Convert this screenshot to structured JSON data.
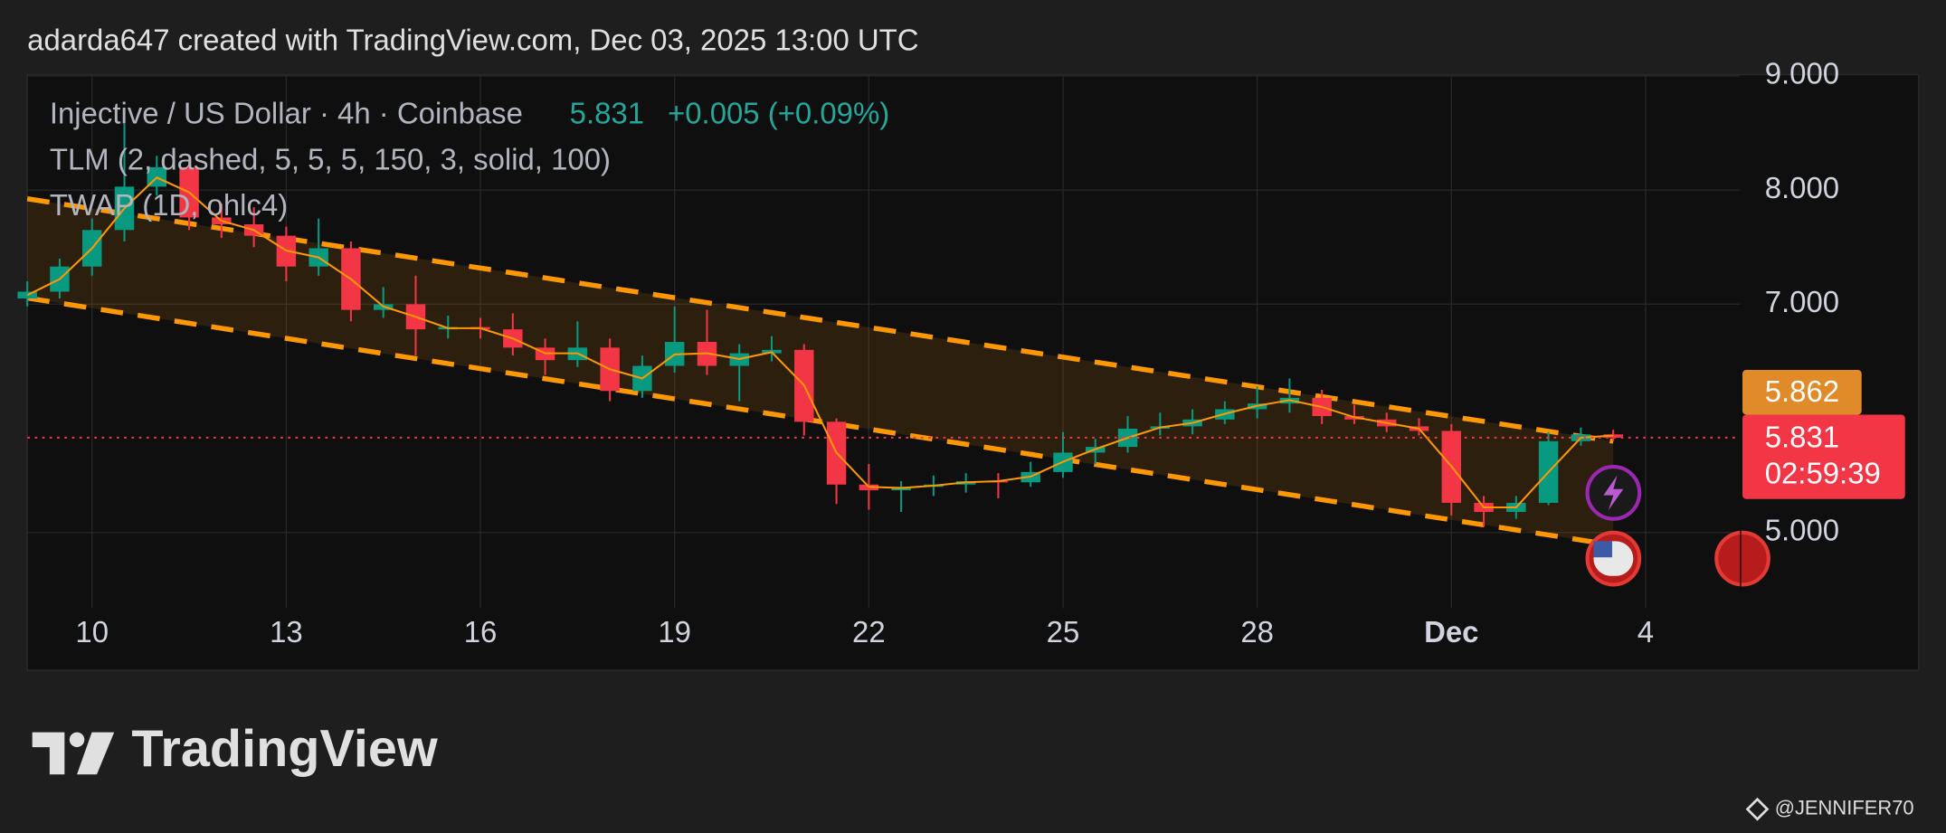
{
  "header": "adarda647 created with TradingView.com, Dec 03, 2025 13:00 UTC",
  "chart_data": {
    "type": "candlestick",
    "title": "Injective / US Dollar · 4h · Coinbase",
    "last_price": 5.831,
    "change": "+0.005 (+0.09%)",
    "indicators": [
      "TLM (2, dashed, 5, 5, 5, 150, 3, solid, 100)",
      "TWAP (1D, ohlc4)"
    ],
    "marker_price": 5.862,
    "countdown": "02:59:39",
    "up_color": "#089981",
    "down_color": "#f23645",
    "twap_color": "#ff9800",
    "channel_color": "#ff9800",
    "x": [
      "2025-11-09T00:00Z",
      "2025-11-09T12:00Z",
      "2025-11-10T00:00Z",
      "2025-11-10T12:00Z",
      "2025-11-11T00:00Z",
      "2025-11-11T12:00Z",
      "2025-11-12T00:00Z",
      "2025-11-12T12:00Z",
      "2025-11-13T00:00Z",
      "2025-11-13T12:00Z",
      "2025-11-14T00:00Z",
      "2025-11-14T12:00Z",
      "2025-11-15T00:00Z",
      "2025-11-15T12:00Z",
      "2025-11-16T00:00Z",
      "2025-11-16T12:00Z",
      "2025-11-17T00:00Z",
      "2025-11-17T12:00Z",
      "2025-11-18T00:00Z",
      "2025-11-18T12:00Z",
      "2025-11-19T00:00Z",
      "2025-11-19T12:00Z",
      "2025-11-20T00:00Z",
      "2025-11-20T12:00Z",
      "2025-11-21T00:00Z",
      "2025-11-21T12:00Z",
      "2025-11-22T00:00Z",
      "2025-11-22T12:00Z",
      "2025-11-23T00:00Z",
      "2025-11-23T12:00Z",
      "2025-11-24T00:00Z",
      "2025-11-24T12:00Z",
      "2025-11-25T00:00Z",
      "2025-11-25T12:00Z",
      "2025-11-26T00:00Z",
      "2025-11-26T12:00Z",
      "2025-11-27T00:00Z",
      "2025-11-27T12:00Z",
      "2025-11-28T00:00Z",
      "2025-11-28T12:00Z",
      "2025-11-29T00:00Z",
      "2025-11-29T12:00Z",
      "2025-11-30T00:00Z",
      "2025-11-30T12:00Z",
      "2025-12-01T00:00Z",
      "2025-12-01T12:00Z",
      "2025-12-02T00:00Z",
      "2025-12-02T12:00Z",
      "2025-12-03T00:00Z",
      "2025-12-03T12:00Z"
    ],
    "open": [
      7.05,
      7.11,
      7.33,
      7.65,
      8.03,
      8.2,
      7.76,
      7.7,
      7.6,
      7.33,
      7.49,
      6.95,
      7.0,
      6.78,
      6.8,
      6.78,
      6.62,
      6.51,
      6.62,
      6.24,
      6.46,
      6.67,
      6.46,
      6.57,
      6.6,
      5.97,
      5.42,
      5.37,
      5.4,
      5.42,
      5.45,
      5.44,
      5.53,
      5.7,
      5.75,
      5.91,
      5.93,
      5.99,
      6.08,
      6.13,
      6.18,
      6.02,
      5.99,
      5.93,
      5.89,
      5.26,
      5.18,
      5.26,
      5.8,
      5.86
    ],
    "high": [
      7.2,
      7.4,
      7.75,
      8.58,
      8.3,
      8.25,
      7.88,
      7.85,
      7.68,
      7.75,
      7.55,
      7.15,
      7.25,
      6.9,
      6.88,
      6.92,
      6.7,
      6.85,
      6.7,
      6.55,
      6.98,
      6.95,
      6.65,
      6.72,
      6.65,
      6.0,
      5.6,
      5.45,
      5.5,
      5.52,
      5.52,
      5.62,
      5.88,
      5.82,
      6.02,
      6.05,
      6.08,
      6.15,
      6.28,
      6.35,
      6.25,
      6.12,
      6.05,
      6.0,
      5.95,
      5.32,
      5.32,
      5.88,
      5.92,
      5.9
    ],
    "low": [
      6.98,
      7.05,
      7.25,
      7.55,
      7.95,
      7.65,
      7.58,
      7.5,
      7.2,
      7.25,
      6.85,
      6.88,
      6.55,
      6.7,
      6.7,
      6.55,
      6.38,
      6.45,
      6.15,
      6.18,
      6.4,
      6.38,
      6.15,
      6.5,
      5.85,
      5.25,
      5.2,
      5.18,
      5.32,
      5.35,
      5.3,
      5.4,
      5.48,
      5.6,
      5.7,
      5.85,
      5.86,
      5.95,
      6.0,
      6.05,
      5.95,
      5.95,
      5.88,
      5.85,
      5.15,
      5.05,
      5.12,
      5.24,
      5.76,
      5.8
    ],
    "close": [
      7.11,
      7.33,
      7.65,
      8.03,
      8.2,
      7.76,
      7.7,
      7.6,
      7.33,
      7.49,
      6.95,
      7.0,
      6.78,
      6.8,
      6.78,
      6.62,
      6.51,
      6.62,
      6.24,
      6.46,
      6.67,
      6.46,
      6.57,
      6.6,
      5.97,
      5.42,
      5.37,
      5.4,
      5.42,
      5.45,
      5.44,
      5.53,
      5.7,
      5.75,
      5.91,
      5.93,
      5.99,
      6.08,
      6.13,
      6.18,
      6.02,
      5.99,
      5.93,
      5.89,
      5.26,
      5.18,
      5.26,
      5.8,
      5.86,
      5.831
    ],
    "twap": [
      7.08,
      7.22,
      7.49,
      7.84,
      8.11,
      7.98,
      7.73,
      7.65,
      7.47,
      7.41,
      7.22,
      6.98,
      6.89,
      6.79,
      6.79,
      6.7,
      6.57,
      6.57,
      6.43,
      6.35,
      6.56,
      6.57,
      6.52,
      6.58,
      6.29,
      5.7,
      5.4,
      5.39,
      5.41,
      5.44,
      5.45,
      5.49,
      5.62,
      5.73,
      5.83,
      5.92,
      5.96,
      6.04,
      6.11,
      6.16,
      6.1,
      6.01,
      5.96,
      5.91,
      5.58,
      5.22,
      5.22,
      5.53,
      5.83,
      5.85
    ],
    "channel": {
      "x": [
        "2025-11-09T00:00Z",
        "2025-12-03T12:00Z"
      ],
      "upper": [
        7.924,
        5.8
      ],
      "lower": [
        7.054,
        4.89
      ]
    },
    "xlim": [
      "2025-11-09T00:00Z",
      "2025-12-05T11:00Z"
    ],
    "xticks": [
      {
        "value": "2025-11-10T00:00Z",
        "label": "10"
      },
      {
        "value": "2025-11-13T00:00Z",
        "label": "13"
      },
      {
        "value": "2025-11-16T00:00Z",
        "label": "16"
      },
      {
        "value": "2025-11-19T00:00Z",
        "label": "19"
      },
      {
        "value": "2025-11-22T00:00Z",
        "label": "22"
      },
      {
        "value": "2025-11-25T00:00Z",
        "label": "25"
      },
      {
        "value": "2025-11-28T00:00Z",
        "label": "28"
      },
      {
        "value": "2025-12-01T00:00Z",
        "label": "Dec"
      },
      {
        "value": "2025-12-04T00:00Z",
        "label": "4"
      }
    ],
    "ylim": [
      4.337,
      9.011
    ],
    "yticks": [
      {
        "value": 5,
        "label": "5.000"
      },
      {
        "value": 7,
        "label": "7.000"
      },
      {
        "value": 8,
        "label": "8.000"
      },
      {
        "value": 9,
        "label": "9.000"
      }
    ],
    "grid": true
  },
  "logo": "TradingView",
  "watermark": "@JENNIFER70"
}
